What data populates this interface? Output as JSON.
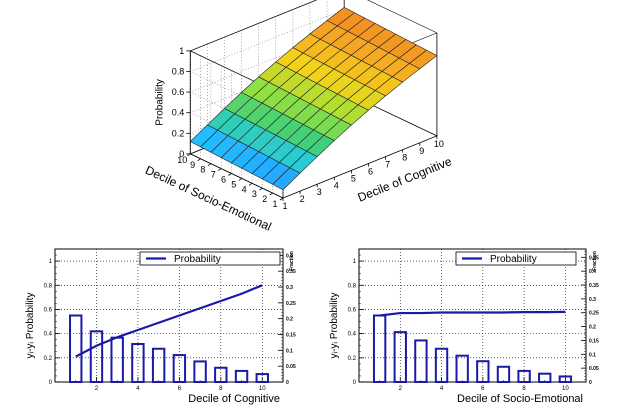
{
  "chart_data": [
    {
      "type": "surface",
      "zlabel": "Probability",
      "xlabel": "Decile of Cognitive",
      "ylabel": "Decile of Socio-Emotional",
      "x": [
        1,
        2,
        3,
        4,
        5,
        6,
        7,
        8,
        9,
        10
      ],
      "y": [
        1,
        2,
        3,
        4,
        5,
        6,
        7,
        8,
        9,
        10
      ],
      "zlim": [
        0,
        1
      ],
      "z_tick_labels": [
        "0",
        "0.2",
        "0.4",
        "0.6",
        "0.8",
        "1"
      ],
      "z_at_corners": {
        "x1_y1": 0.08,
        "x10_y1": 0.78,
        "x1_y10": 0.12,
        "x10_y10": 0.82
      },
      "grid": true,
      "colormap": [
        "#2b7cff",
        "#21c8ff",
        "#3fd07a",
        "#9ae23a",
        "#f4d21a",
        "#f5a623",
        "#f08020"
      ]
    },
    {
      "type": "line+bar",
      "xlabel": "Decile of Cognitive",
      "ylabel": "yᵢ-yᵢ Probability",
      "y2label": "Fraction",
      "legend": [
        "Probability"
      ],
      "legend_position": "top-right",
      "xlim": [
        0,
        11
      ],
      "ylim": [
        0,
        1.1
      ],
      "y2lim": [
        0,
        0.42
      ],
      "y_ticks": [
        0,
        0.2,
        0.4,
        0.6,
        0.8,
        1
      ],
      "y_tick_labels": [
        "0",
        "0.2",
        "0.4",
        "0.6",
        "0.8",
        "1"
      ],
      "y2_ticks": [
        0,
        0.05,
        0.1,
        0.15,
        0.2,
        0.25,
        0.3,
        0.35,
        0.4
      ],
      "y2_tick_labels": [
        "0",
        "0.05",
        "0.1",
        "0.15",
        "0.2",
        "0.25",
        "0.3",
        "0.35",
        "0.4"
      ],
      "x_ticks": [
        2,
        4,
        6,
        8,
        10
      ],
      "x_tick_labels": [
        "2",
        "4",
        "6",
        "8",
        "10"
      ],
      "bars": {
        "x": [
          1,
          2,
          3,
          4,
          5,
          6,
          7,
          8,
          9,
          10
        ],
        "values": [
          0.21,
          0.16,
          0.14,
          0.12,
          0.105,
          0.085,
          0.065,
          0.045,
          0.035,
          0.025
        ]
      },
      "line": {
        "name": "Probability",
        "x": [
          1,
          2,
          3,
          4,
          5,
          6,
          7,
          8,
          9,
          10
        ],
        "values": [
          0.21,
          0.3,
          0.37,
          0.43,
          0.49,
          0.55,
          0.61,
          0.67,
          0.73,
          0.8
        ]
      },
      "grid": true
    },
    {
      "type": "line+bar",
      "xlabel": "Decile of Socio-Emotional",
      "ylabel": "yᵢ-yᵢ Probability",
      "y2label": "Fraction",
      "legend": [
        "Probability"
      ],
      "legend_position": "top-right",
      "xlim": [
        0,
        11
      ],
      "ylim": [
        0,
        1.1
      ],
      "y2lim": [
        0,
        0.48
      ],
      "y_ticks": [
        0,
        0.2,
        0.4,
        0.6,
        0.8,
        1
      ],
      "y_tick_labels": [
        "0",
        "0.2",
        "0.4",
        "0.6",
        "0.8",
        "1"
      ],
      "y2_ticks": [
        0,
        0.05,
        0.1,
        0.15,
        0.2,
        0.25,
        0.3,
        0.35,
        0.4,
        0.45
      ],
      "y2_tick_labels": [
        "0",
        "0.05",
        "0.1",
        "0.15",
        "0.2",
        "0.25",
        "0.3",
        "0.35",
        "0.4",
        "0.45"
      ],
      "x_ticks": [
        2,
        4,
        6,
        8,
        10
      ],
      "x_tick_labels": [
        "2",
        "4",
        "6",
        "8",
        "10"
      ],
      "bars": {
        "x": [
          1,
          2,
          3,
          4,
          5,
          6,
          7,
          8,
          9,
          10
        ],
        "values": [
          0.24,
          0.18,
          0.15,
          0.12,
          0.095,
          0.075,
          0.055,
          0.04,
          0.03,
          0.02
        ]
      },
      "line": {
        "name": "Probability",
        "x": [
          1,
          2,
          3,
          4,
          5,
          6,
          7,
          8,
          9,
          10
        ],
        "values": [
          0.55,
          0.57,
          0.57,
          0.575,
          0.575,
          0.575,
          0.575,
          0.578,
          0.578,
          0.58
        ]
      },
      "grid": true
    }
  ]
}
